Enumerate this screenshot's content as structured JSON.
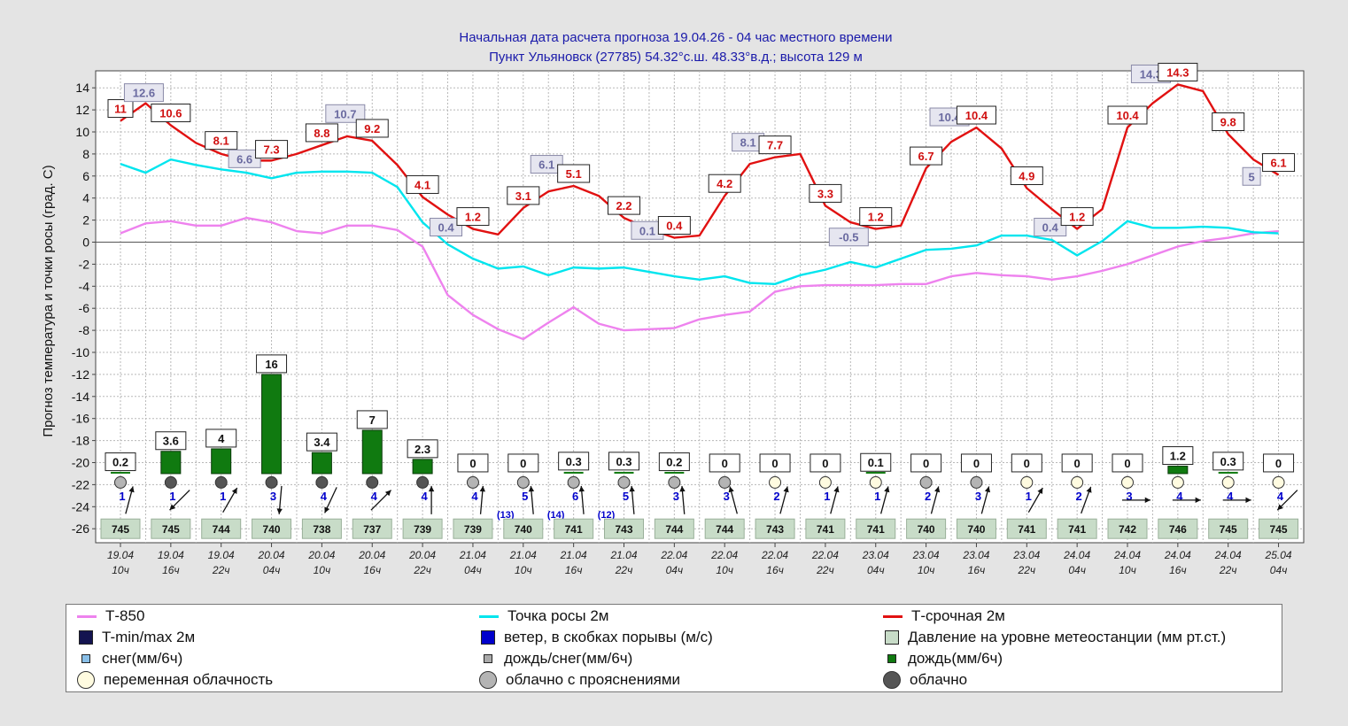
{
  "header": {
    "line1": "Начальная дата расчета прогноза 19.04.26 - 04 час местного времени",
    "line2": "Пункт  Ульяновск (27785)   54.32°с.ш.   48.33°в.д.; высота 129 м"
  },
  "colors": {
    "t850": "#ee82ee",
    "dew": "#00e5ee",
    "temp": "#e11111",
    "precip": "#107a10",
    "wind": "#0000cc",
    "pressure": "#c8dcc8",
    "cloud_variable": "#fffbe0",
    "cloud_partly": "#b4b4b4",
    "cloud_overcast": "#555555"
  },
  "chart_data": {
    "type": "line",
    "ylabel": "Прогноз температура и точки росы (град. С)",
    "ylim": [
      -27,
      15
    ],
    "yticks": [
      14,
      12,
      10,
      8,
      6,
      4,
      2,
      0,
      -2,
      -4,
      -6,
      -8,
      -10,
      -12,
      -14,
      -16,
      -18,
      -20,
      -22,
      -24,
      -26
    ],
    "x_dates": [
      "19.04",
      "19.04",
      "19.04",
      "20.04",
      "20.04",
      "20.04",
      "20.04",
      "21.04",
      "21.04",
      "21.04",
      "21.04",
      "22.04",
      "22.04",
      "22.04",
      "22.04",
      "23.04",
      "23.04",
      "23.04",
      "23.04",
      "24.04",
      "24.04",
      "24.04",
      "24.04",
      "25.04"
    ],
    "x_hours": [
      "10ч",
      "16ч",
      "22ч",
      "04ч",
      "10ч",
      "16ч",
      "22ч",
      "04ч",
      "10ч",
      "16ч",
      "22ч",
      "04ч",
      "10ч",
      "16ч",
      "22ч",
      "04ч",
      "10ч",
      "16ч",
      "22ч",
      "04ч",
      "10ч",
      "16ч",
      "22ч",
      "04ч"
    ],
    "series": [
      {
        "name": "Т-850",
        "key": "t850",
        "x": [
          0,
          0.5,
          1,
          1.5,
          2,
          2.5,
          3,
          3.5,
          4,
          4.5,
          5,
          5.5,
          6,
          6.5,
          7,
          7.5,
          8,
          8.5,
          9,
          9.5,
          10,
          10.5,
          11,
          11.5,
          12,
          12.5,
          13,
          13.5,
          14,
          14.5,
          15,
          15.5,
          16,
          16.5,
          17,
          17.5,
          18,
          18.5,
          19,
          19.5,
          20,
          20.5,
          21,
          21.5,
          22,
          22.5,
          23
        ],
        "y": [
          0.8,
          1.7,
          1.9,
          1.5,
          1.5,
          2.2,
          1.8,
          1.0,
          0.8,
          1.5,
          1.5,
          1.1,
          -0.4,
          -4.8,
          -6.6,
          -7.9,
          -8.8,
          -7.3,
          -5.9,
          -7.4,
          -8.0,
          -7.9,
          -7.8,
          -7.0,
          -6.6,
          -6.3,
          -4.5,
          -4.0,
          -3.9,
          -3.9,
          -3.9,
          -3.8,
          -3.8,
          -3.1,
          -2.8,
          -3.0,
          -3.1,
          -3.4,
          -3.1,
          -2.6,
          -2.0,
          -1.2,
          -0.4,
          0.1,
          0.4,
          0.8,
          1.0
        ]
      },
      {
        "name": "Точка росы 2м",
        "key": "dew",
        "x": [
          0,
          0.5,
          1,
          1.5,
          2,
          2.5,
          3,
          3.5,
          4,
          4.5,
          5,
          5.5,
          6,
          6.5,
          7,
          7.5,
          8,
          8.5,
          9,
          9.5,
          10,
          10.5,
          11,
          11.5,
          12,
          12.5,
          13,
          13.5,
          14,
          14.5,
          15,
          15.5,
          16,
          16.5,
          17,
          17.5,
          18,
          18.5,
          19,
          19.5,
          20,
          20.5,
          21,
          21.5,
          22,
          22.5,
          23
        ],
        "y": [
          7.1,
          6.3,
          7.5,
          7.0,
          6.6,
          6.3,
          5.8,
          6.3,
          6.4,
          6.4,
          6.3,
          5.0,
          1.8,
          -0.2,
          -1.5,
          -2.4,
          -2.2,
          -3.0,
          -2.3,
          -2.4,
          -2.3,
          -2.7,
          -3.1,
          -3.4,
          -3.1,
          -3.7,
          -3.8,
          -3.0,
          -2.5,
          -1.8,
          -2.3,
          -1.5,
          -0.7,
          -0.6,
          -0.3,
          0.6,
          0.6,
          0.2,
          -1.2,
          0.1,
          1.9,
          1.3,
          1.3,
          1.4,
          1.3,
          0.9,
          0.8
        ]
      },
      {
        "name": "Т-срочная 2м",
        "key": "temp",
        "x": [
          0,
          0.5,
          1,
          1.5,
          2,
          2.5,
          3,
          3.5,
          4,
          4.5,
          5,
          5.5,
          6,
          6.5,
          7,
          7.5,
          8,
          8.5,
          9,
          9.5,
          10,
          10.5,
          11,
          11.5,
          12,
          12.5,
          13,
          13.5,
          14,
          14.5,
          15,
          15.5,
          16,
          16.5,
          17,
          17.5,
          18,
          18.5,
          19,
          19.5,
          20,
          20.5,
          21,
          21.5,
          22,
          22.5,
          23
        ],
        "y": [
          11.0,
          12.6,
          10.6,
          9.0,
          8.0,
          7.4,
          7.4,
          8.0,
          8.8,
          9.6,
          9.2,
          7.0,
          4.1,
          2.5,
          1.2,
          0.7,
          3.1,
          4.6,
          5.1,
          4.2,
          2.2,
          1.2,
          0.4,
          0.6,
          4.2,
          7.1,
          7.7,
          8.0,
          3.3,
          1.8,
          1.2,
          1.5,
          6.7,
          9.1,
          10.4,
          8.5,
          4.9,
          3.0,
          1.2,
          3.0,
          10.4,
          12.6,
          14.3,
          13.7,
          9.8,
          7.5,
          6.1
        ]
      }
    ],
    "temp_labels": [
      {
        "x": 0,
        "y": 11,
        "text": "11",
        "kind": "max"
      },
      {
        "x": 0.5,
        "y": 12.6,
        "text": "12.6",
        "kind": "min"
      },
      {
        "x": 1,
        "y": 10.6,
        "text": "10.6",
        "kind": "max"
      },
      {
        "x": 2,
        "y": 8.1,
        "text": "8.1",
        "kind": "max"
      },
      {
        "x": 2.5,
        "y": 6.6,
        "text": "6.6",
        "kind": "min"
      },
      {
        "x": 3,
        "y": 7.3,
        "text": "7.3",
        "kind": "max"
      },
      {
        "x": 4,
        "y": 8.8,
        "text": "8.8",
        "kind": "max"
      },
      {
        "x": 4.5,
        "y": 10.7,
        "text": "10.7",
        "kind": "min"
      },
      {
        "x": 5,
        "y": 9.2,
        "text": "9.2",
        "kind": "max"
      },
      {
        "x": 6,
        "y": 4.1,
        "text": "4.1",
        "kind": "max"
      },
      {
        "x": 6.5,
        "y": 0.4,
        "text": "0.4",
        "kind": "min"
      },
      {
        "x": 7,
        "y": 1.2,
        "text": "1.2",
        "kind": "max"
      },
      {
        "x": 8,
        "y": 3.1,
        "text": "3.1",
        "kind": "max"
      },
      {
        "x": 8.5,
        "y": 6.1,
        "text": "6.1",
        "kind": "min"
      },
      {
        "x": 9,
        "y": 5.1,
        "text": "5.1",
        "kind": "max"
      },
      {
        "x": 10,
        "y": 2.2,
        "text": "2.2",
        "kind": "max"
      },
      {
        "x": 10.5,
        "y": 0.1,
        "text": "0.1",
        "kind": "min"
      },
      {
        "x": 11,
        "y": 0.4,
        "text": "0.4",
        "kind": "max"
      },
      {
        "x": 12,
        "y": 4.2,
        "text": "4.2",
        "kind": "max"
      },
      {
        "x": 12.5,
        "y": 8.1,
        "text": "8.1",
        "kind": "min"
      },
      {
        "x": 13,
        "y": 7.7,
        "text": "7.7",
        "kind": "max"
      },
      {
        "x": 14,
        "y": 3.3,
        "text": "3.3",
        "kind": "max"
      },
      {
        "x": 14.5,
        "y": -0.5,
        "text": "-0.5",
        "kind": "min"
      },
      {
        "x": 15,
        "y": 1.2,
        "text": "1.2",
        "kind": "max"
      },
      {
        "x": 16,
        "y": 6.7,
        "text": "6.7",
        "kind": "max"
      },
      {
        "x": 16.5,
        "y": 10.4,
        "text": "10.4",
        "kind": "min"
      },
      {
        "x": 17,
        "y": 10.4,
        "text": "10.4",
        "kind": "max"
      },
      {
        "x": 18,
        "y": 4.9,
        "text": "4.9",
        "kind": "max"
      },
      {
        "x": 18.5,
        "y": 0.4,
        "text": "0.4",
        "kind": "min"
      },
      {
        "x": 19,
        "y": 1.2,
        "text": "1.2",
        "kind": "max"
      },
      {
        "x": 20,
        "y": 10.4,
        "text": "10.4",
        "kind": "max"
      },
      {
        "x": 20.5,
        "y": 14.3,
        "text": "14.3",
        "kind": "min"
      },
      {
        "x": 21,
        "y": 14.3,
        "text": "14.3",
        "kind": "max"
      },
      {
        "x": 22,
        "y": 9.8,
        "text": "9.8",
        "kind": "max"
      },
      {
        "x": 22.5,
        "y": 5,
        "text": "5",
        "kind": "min"
      },
      {
        "x": 23,
        "y": 6.1,
        "text": "6.1",
        "kind": "max"
      }
    ],
    "precip": [
      {
        "value": 0.2,
        "label": "0.2",
        "bar": false
      },
      {
        "value": 3.6,
        "label": "3.6",
        "bar": true
      },
      {
        "value": 4,
        "label": "4",
        "bar": true
      },
      {
        "value": 16,
        "label": "16",
        "bar": true
      },
      {
        "value": 3.4,
        "label": "3.4",
        "bar": true
      },
      {
        "value": 7,
        "label": "7",
        "bar": true
      },
      {
        "value": 2.3,
        "label": "2.3",
        "bar": true
      },
      {
        "value": 0,
        "label": "0",
        "bar": false
      },
      {
        "value": 0,
        "label": "0",
        "bar": false
      },
      {
        "value": 0.3,
        "label": "0.3",
        "bar": false
      },
      {
        "value": 0.3,
        "label": "0.3",
        "bar": false
      },
      {
        "value": 0.2,
        "label": "0.2",
        "bar": false
      },
      {
        "value": 0,
        "label": "0",
        "bar": false
      },
      {
        "value": 0,
        "label": "0",
        "bar": false
      },
      {
        "value": 0,
        "label": "0",
        "bar": false
      },
      {
        "value": 0.1,
        "label": "0.1",
        "bar": false
      },
      {
        "value": 0,
        "label": "0",
        "bar": false
      },
      {
        "value": 0,
        "label": "0",
        "bar": false
      },
      {
        "value": 0,
        "label": "0",
        "bar": false
      },
      {
        "value": 0,
        "label": "0",
        "bar": false
      },
      {
        "value": 0,
        "label": "0",
        "bar": false
      },
      {
        "value": 1.2,
        "label": "1.2",
        "bar": true
      },
      {
        "value": 0.3,
        "label": "0.3",
        "bar": false
      },
      {
        "value": 0,
        "label": "0",
        "bar": false
      }
    ],
    "cloud": [
      "partly",
      "overcast",
      "overcast",
      "overcast",
      "overcast",
      "overcast",
      "overcast",
      "partly",
      "partly",
      "partly",
      "partly",
      "partly",
      "partly",
      "variable",
      "variable",
      "variable",
      "partly",
      "partly",
      "variable",
      "variable",
      "variable",
      "variable",
      "variable",
      "variable"
    ],
    "wind_speed": [
      "1",
      "1",
      "1",
      "3",
      "4",
      "4",
      "4",
      "4",
      "5",
      "6",
      "5",
      "3",
      "3",
      "2",
      "1",
      "1",
      "2",
      "3",
      "1",
      "2",
      "3",
      "4",
      "4",
      "4"
    ],
    "wind_dir_deg": [
      75,
      -135,
      60,
      -95,
      -115,
      45,
      90,
      85,
      95,
      95,
      95,
      95,
      105,
      75,
      75,
      75,
      75,
      75,
      60,
      70,
      0,
      0,
      0,
      -135
    ],
    "wind_gusts": [
      {
        "x": 8,
        "text": "(13)"
      },
      {
        "x": 9,
        "text": "(14)"
      },
      {
        "x": 10,
        "text": "(12)"
      }
    ],
    "pressure": [
      "745",
      "745",
      "744",
      "740",
      "738",
      "737",
      "739",
      "739",
      "740",
      "741",
      "743",
      "744",
      "744",
      "743",
      "741",
      "741",
      "740",
      "740",
      "741",
      "741",
      "742",
      "746",
      "745",
      "745"
    ]
  },
  "legend": [
    {
      "label": "Т-850",
      "type": "line",
      "color": "#ee82ee"
    },
    {
      "label": "Точка росы 2м",
      "type": "line",
      "color": "#00e5ee"
    },
    {
      "label": "Т-срочная 2м",
      "type": "line",
      "color": "#e11111"
    },
    {
      "label": "T-min/max 2м",
      "type": "square",
      "color": "#141450"
    },
    {
      "label": "ветер, в скобках порывы (м/с)",
      "type": "square",
      "color": "#0000cc"
    },
    {
      "label": "Давление на уровне метеостанции (мм рт.ст.)",
      "type": "square",
      "color": "#c8dcc8"
    },
    {
      "label": "снег(мм/6ч)",
      "type": "smallsquare",
      "color": "#89bfe8"
    },
    {
      "label": "дождь/снег(мм/6ч)",
      "type": "smallsquare",
      "color": "#aaaaaa"
    },
    {
      "label": "дождь(мм/6ч)",
      "type": "smallsquare",
      "color": "#107a10"
    },
    {
      "label": "переменная облачность",
      "type": "circle",
      "color": "#fffbe0"
    },
    {
      "label": "облачно с прояснениями",
      "type": "circle",
      "color": "#b4b4b4"
    },
    {
      "label": "облачно",
      "type": "circle",
      "color": "#555555"
    }
  ]
}
